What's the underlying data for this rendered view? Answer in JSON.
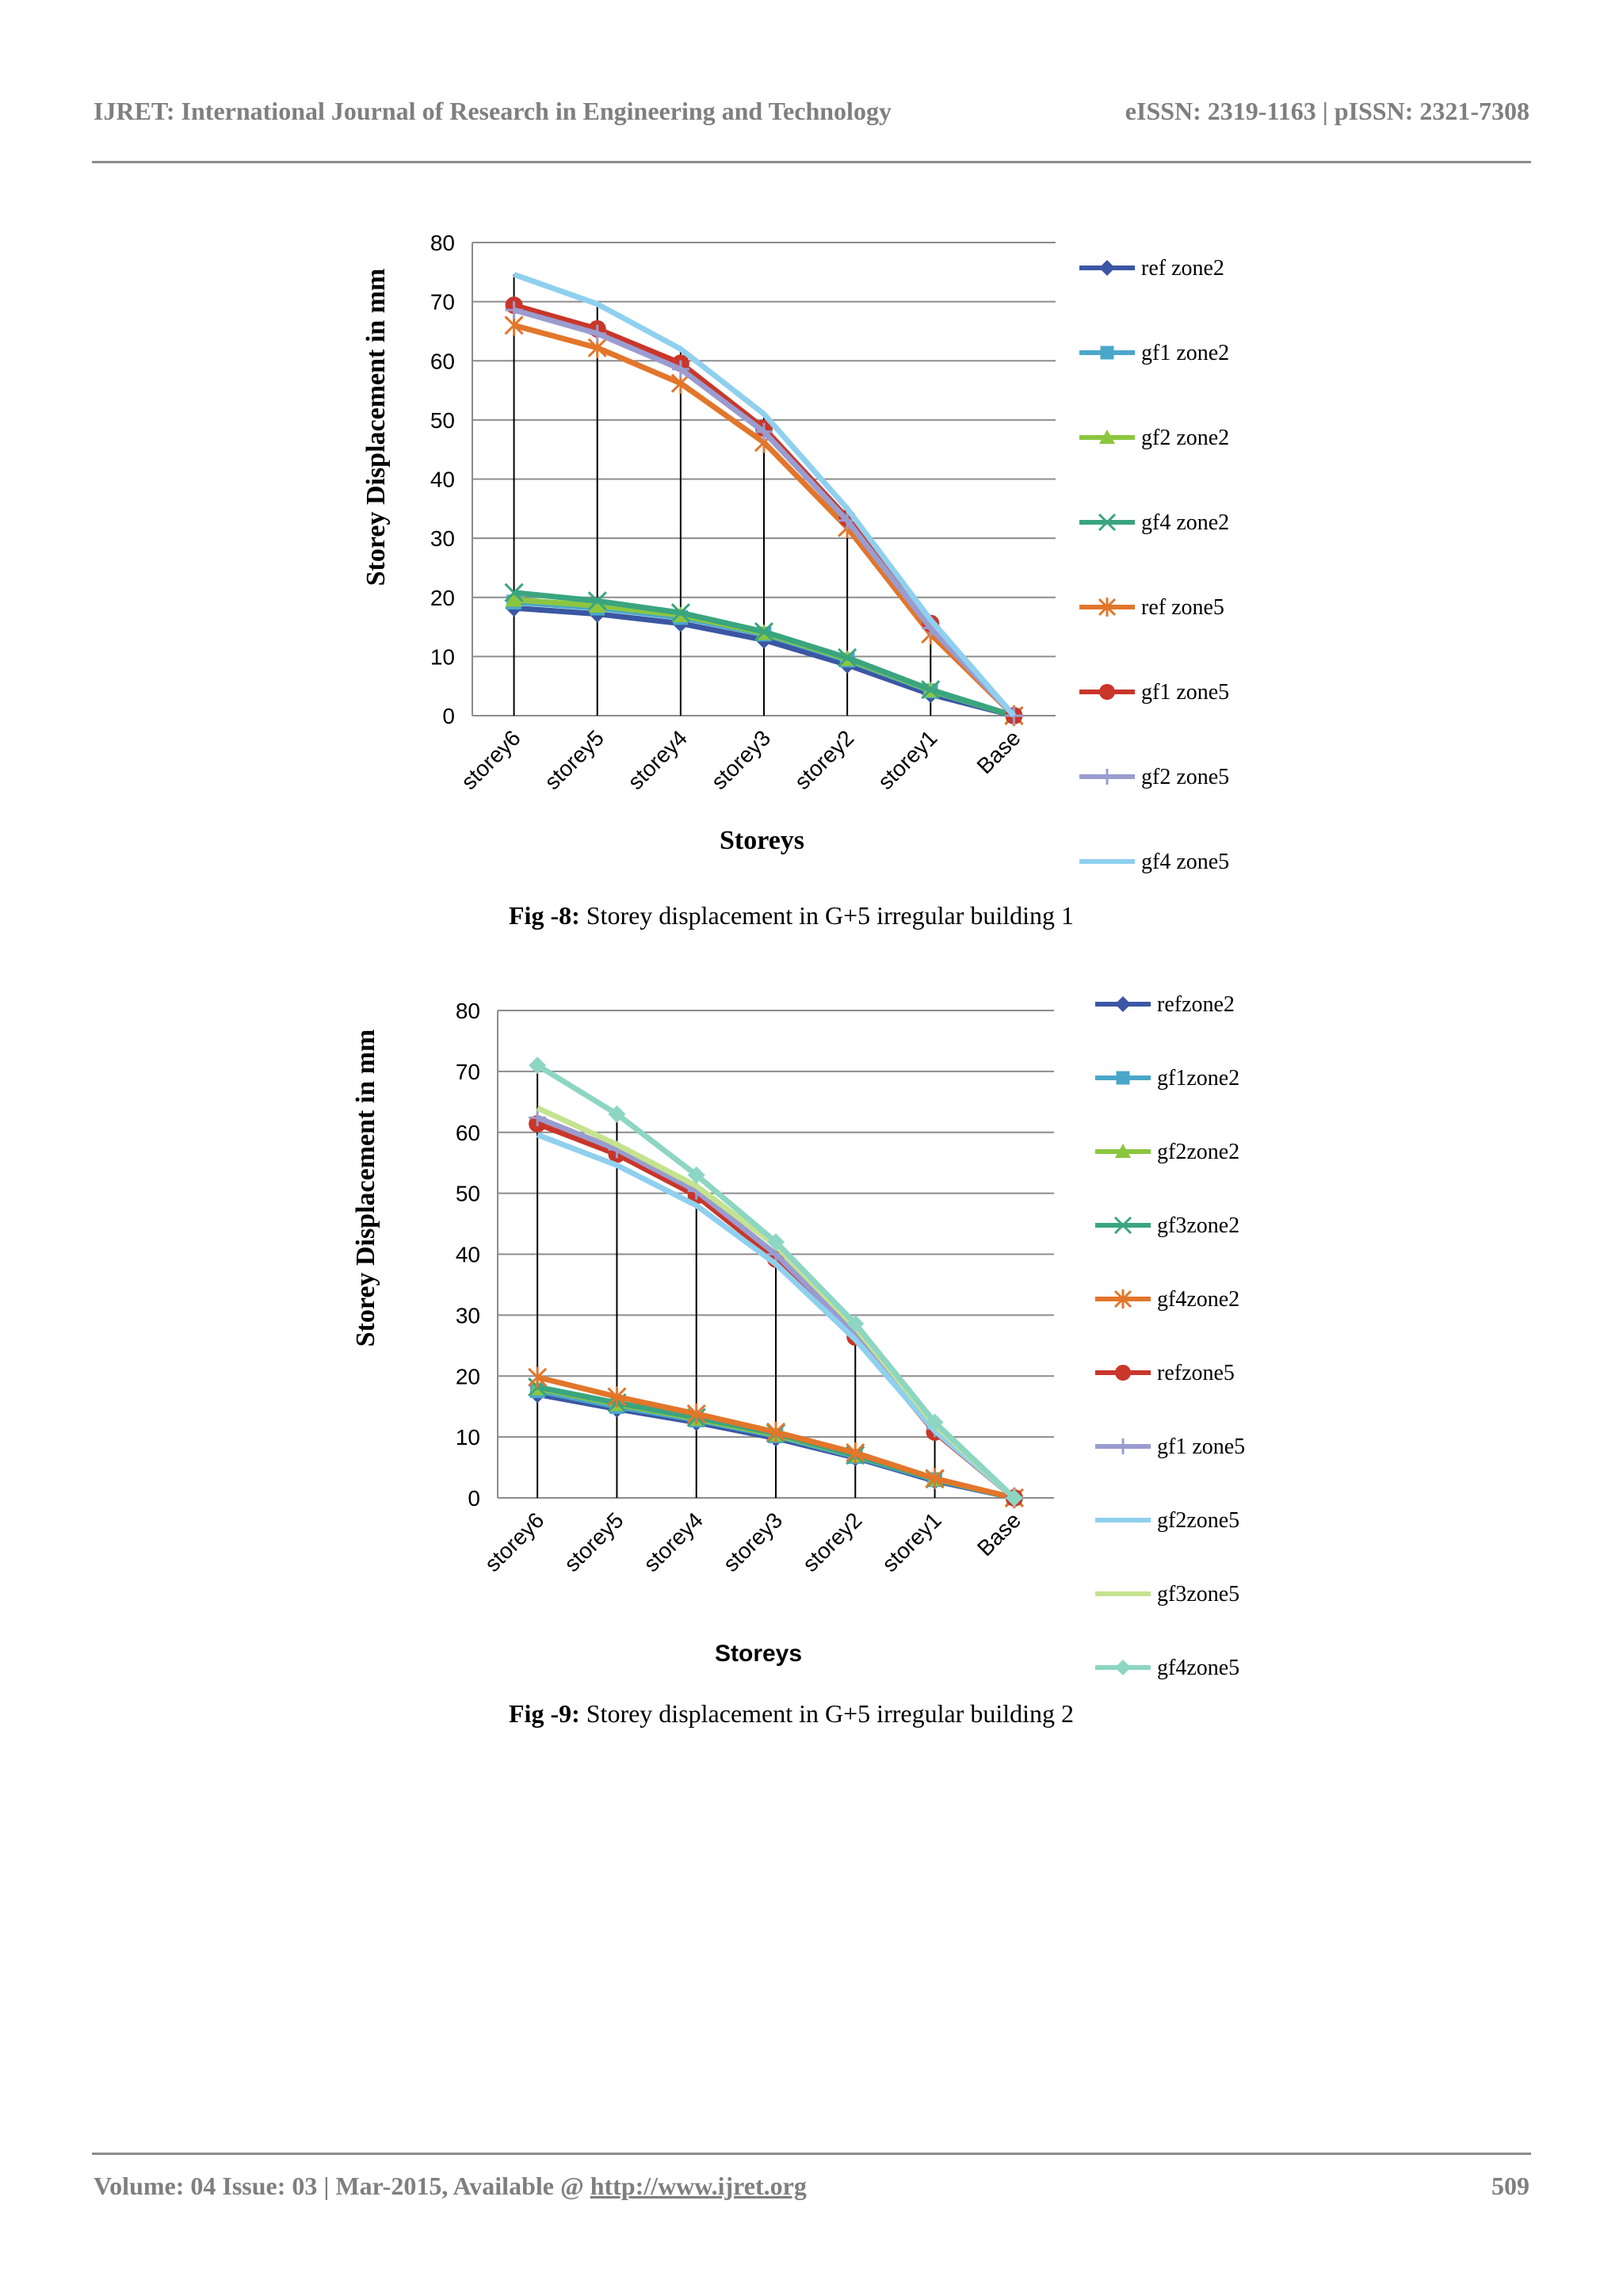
{
  "header": {
    "journal": "IJRET: International Journal of Research in Engineering and Technology",
    "issn": "eISSN: 2319-1163 | pISSN: 2321-7308"
  },
  "footer": {
    "volume_prefix": "Volume: 04 Issue: 03 | Mar-2015, Available @ ",
    "url": "http://www.ijret.org",
    "page_number": "509"
  },
  "figures": [
    {
      "caption_label": "Fig -8:",
      "caption_text": " Storey displacement in G+5 irregular building 1"
    },
    {
      "caption_label": "Fig -9:",
      "caption_text": " Storey displacement in G+5 irregular building 2"
    }
  ],
  "chart_data": [
    {
      "type": "line",
      "ylabel": "Storey Displacement in mm",
      "xlabel": "Storeys",
      "categories": [
        "storey6",
        "storey5",
        "storey4",
        "storey3",
        "storey2",
        "storey1",
        "Base"
      ],
      "ylim": [
        0,
        80
      ],
      "yticks": [
        0,
        10,
        20,
        30,
        40,
        50,
        60,
        70,
        80
      ],
      "grid": true,
      "legend_position": "right",
      "drop_lines": true,
      "series": [
        {
          "name": "ref zone2",
          "color": "#3b57a3",
          "marker": "diamond",
          "values": [
            18.2,
            17.2,
            15.6,
            12.8,
            8.6,
            3.6,
            0
          ]
        },
        {
          "name": "gf1  zone2",
          "color": "#4aa7c9",
          "marker": "square",
          "values": [
            19.2,
            18.2,
            16.6,
            13.8,
            9.4,
            4.2,
            0
          ]
        },
        {
          "name": "gf2 zone2",
          "color": "#8cc63f",
          "marker": "triangle",
          "values": [
            19.6,
            18.6,
            17.0,
            14.0,
            9.6,
            4.3,
            0
          ]
        },
        {
          "name": "gf4 zone2",
          "color": "#3aa57f",
          "marker": "x",
          "values": [
            20.8,
            19.4,
            17.4,
            14.2,
            9.8,
            4.4,
            0
          ]
        },
        {
          "name": "ref zone5",
          "color": "#e2762b",
          "marker": "star",
          "values": [
            66.0,
            62.2,
            56.2,
            46.2,
            31.8,
            13.8,
            0
          ]
        },
        {
          "name": "gf1  zone5",
          "color": "#c9362a",
          "marker": "circle",
          "values": [
            69.4,
            65.4,
            59.6,
            48.6,
            33.4,
            15.6,
            0
          ]
        },
        {
          "name": "gf2 zone5",
          "color": "#9a9ccf",
          "marker": "plus",
          "values": [
            68.6,
            64.6,
            58.6,
            48.0,
            33.0,
            14.8,
            0
          ]
        },
        {
          "name": "gf4 zone5",
          "color": "#8fd0ef",
          "marker": "none",
          "values": [
            74.6,
            69.6,
            62.0,
            51.0,
            35.0,
            16.2,
            0
          ]
        }
      ]
    },
    {
      "type": "line",
      "ylabel": "Storey Displacement in mm",
      "xlabel": "Storeys",
      "categories": [
        "storey6",
        "storey5",
        "storey4",
        "storey3",
        "storey2",
        "storey1",
        "Base"
      ],
      "ylim": [
        0,
        80
      ],
      "yticks": [
        0,
        10,
        20,
        30,
        40,
        50,
        60,
        70,
        80
      ],
      "grid": true,
      "legend_position": "right",
      "drop_lines": true,
      "series": [
        {
          "name": "refzone2",
          "color": "#3b57a3",
          "marker": "diamond",
          "values": [
            17.0,
            14.6,
            12.4,
            9.8,
            6.6,
            2.8,
            0
          ]
        },
        {
          "name": "gf1zone2",
          "color": "#4aa7c9",
          "marker": "square",
          "values": [
            17.6,
            15.0,
            12.8,
            10.2,
            6.8,
            3.0,
            0
          ]
        },
        {
          "name": "gf2zone2",
          "color": "#8cc63f",
          "marker": "triangle",
          "values": [
            18.0,
            15.4,
            13.0,
            10.4,
            7.0,
            3.1,
            0
          ]
        },
        {
          "name": "gf3zone2",
          "color": "#3aa57f",
          "marker": "x",
          "values": [
            18.2,
            15.6,
            13.2,
            10.6,
            7.0,
            3.1,
            0
          ]
        },
        {
          "name": "gf4zone2",
          "color": "#e2762b",
          "marker": "star",
          "values": [
            19.8,
            16.6,
            13.8,
            10.8,
            7.4,
            3.2,
            0
          ]
        },
        {
          "name": "refzone5",
          "color": "#c9362a",
          "marker": "circle",
          "values": [
            61.4,
            56.4,
            49.6,
            39.2,
            26.4,
            10.8,
            0
          ]
        },
        {
          "name": "gf1  zone5",
          "color": "#9a9ccf",
          "marker": "plus",
          "values": [
            62.4,
            57.2,
            50.4,
            40.0,
            27.0,
            11.4,
            0
          ]
        },
        {
          "name": "gf2zone5",
          "color": "#8fd0ef",
          "marker": "none",
          "values": [
            59.6,
            54.6,
            48.0,
            38.4,
            26.0,
            11.0,
            0
          ]
        },
        {
          "name": "gf3zone5",
          "color": "#c4e38f",
          "marker": "none",
          "values": [
            64.0,
            58.0,
            51.2,
            41.4,
            28.0,
            12.0,
            0
          ]
        },
        {
          "name": "gf4zone5",
          "color": "#8dd6c3",
          "marker": "diamond",
          "values": [
            71.0,
            63.0,
            53.0,
            42.0,
            28.6,
            12.4,
            0
          ]
        }
      ]
    }
  ]
}
